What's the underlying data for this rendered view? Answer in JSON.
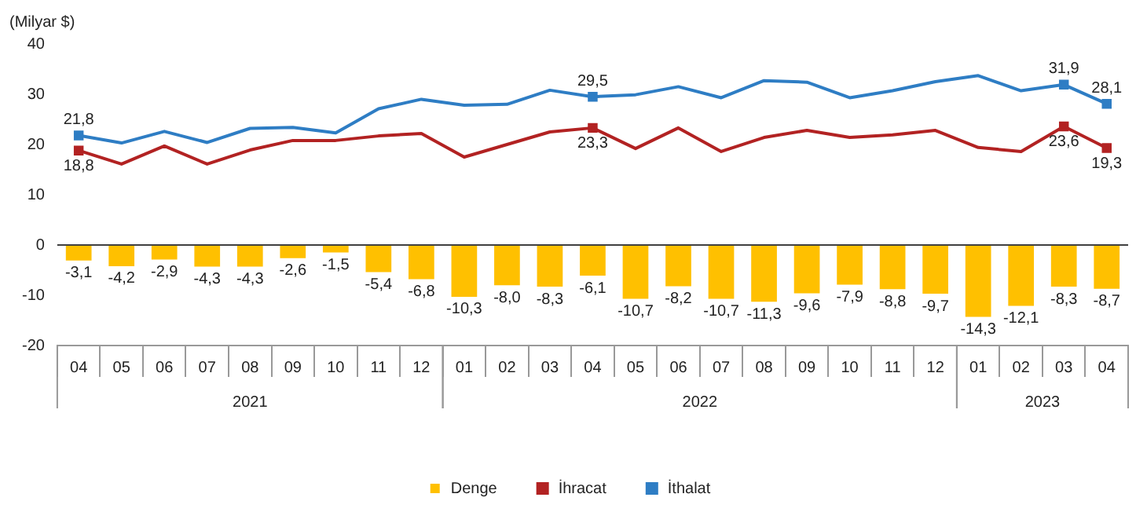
{
  "chart_data": {
    "type": "bar",
    "ylabel": "(Milyar $)",
    "categories": [
      "04",
      "05",
      "06",
      "07",
      "08",
      "09",
      "10",
      "11",
      "12",
      "01",
      "02",
      "03",
      "04",
      "05",
      "06",
      "07",
      "08",
      "09",
      "10",
      "11",
      "12",
      "01",
      "02",
      "03",
      "04"
    ],
    "ylim": [
      -20,
      40
    ],
    "yticks": [
      -20,
      -10,
      0,
      10,
      20,
      30,
      40
    ],
    "grid": false,
    "legend": "bottom",
    "ref_lines": [
      {
        "axis": "y",
        "value": 0,
        "color": "#404040"
      }
    ],
    "annotations": [
      "2021",
      "2022",
      "2023"
    ],
    "series": [
      {
        "name": "Denge",
        "color": "#ffc000",
        "values": [
          -3.1,
          -4.2,
          -2.9,
          -4.3,
          -4.3,
          -2.6,
          -1.5,
          -5.4,
          -6.8,
          -10.3,
          -8.0,
          -8.3,
          -6.1,
          -10.7,
          -8.2,
          -10.7,
          -11.3,
          -9.6,
          -7.9,
          -8.8,
          -9.7,
          -14.3,
          -12.1,
          -8.3,
          -8.7
        ],
        "value_labels": [
          "-3,1",
          "-4,2",
          "-2,9",
          "-4,3",
          "-4,3",
          "-2,6",
          "-1,5",
          "-5,4",
          "-6,8",
          "-10,3",
          "-8,0",
          "-8,3",
          "-6,1",
          "-10,7",
          "-8,2",
          "-10,7",
          "-11,3",
          "-9,6",
          "-7,9",
          "-8,8",
          "-9,7",
          "-14,3",
          "-12,1",
          "-8,3",
          "-8,7"
        ]
      },
      {
        "name": "İhracat",
        "type": "line",
        "color": "#b22222",
        "values": [
          18.8,
          16.1,
          19.7,
          16.1,
          18.9,
          20.8,
          20.8,
          21.7,
          22.2,
          17.5,
          20.0,
          22.5,
          23.3,
          19.2,
          23.3,
          18.6,
          21.4,
          22.8,
          21.4,
          21.9,
          22.8,
          19.4,
          18.6,
          23.6,
          19.3
        ],
        "value_labels": [
          "18,8",
          null,
          null,
          null,
          null,
          null,
          null,
          null,
          null,
          null,
          null,
          null,
          "23,3",
          null,
          null,
          null,
          null,
          null,
          null,
          null,
          null,
          null,
          null,
          "23,6",
          "19,3"
        ]
      },
      {
        "name": "İthalat",
        "type": "line",
        "color": "#2e7dc4",
        "values": [
          21.8,
          20.3,
          22.6,
          20.4,
          23.2,
          23.4,
          22.3,
          27.1,
          29.0,
          27.8,
          28.0,
          30.8,
          29.5,
          29.9,
          31.5,
          29.3,
          32.7,
          32.4,
          29.3,
          30.7,
          32.5,
          33.7,
          30.7,
          31.9,
          28.1
        ],
        "value_labels": [
          "21,8",
          null,
          null,
          null,
          null,
          null,
          null,
          null,
          null,
          null,
          null,
          null,
          "29,5",
          null,
          null,
          null,
          null,
          null,
          null,
          null,
          null,
          null,
          null,
          "31,9",
          "28,1"
        ]
      }
    ]
  }
}
